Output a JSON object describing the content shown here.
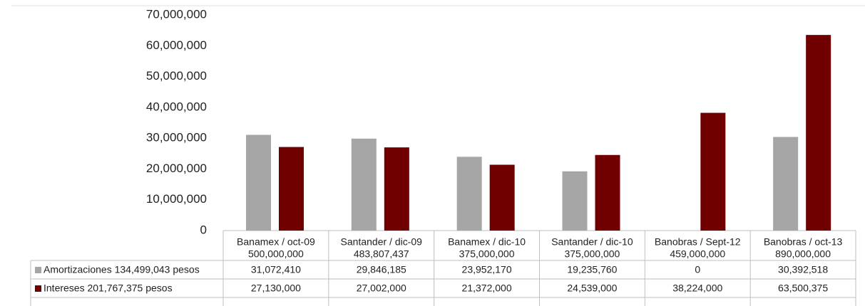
{
  "chart_data": {
    "type": "bar",
    "categories": [
      [
        "Banamex / oct-09",
        "500,000,000"
      ],
      [
        "Santander / dic-09",
        "483,807,437"
      ],
      [
        "Banamex / dic-10",
        "375,000,000"
      ],
      [
        "Santander / dic-10",
        "375,000,000"
      ],
      [
        "Banobras / Sept-12",
        "459,000,000"
      ],
      [
        "Banobras / oct-13",
        "890,000,000"
      ]
    ],
    "series": [
      {
        "name": "Amortizaciones 134,499,043 pesos",
        "color": "#a6a6a6",
        "values": [
          31072410,
          29846185,
          23952170,
          19235760,
          0,
          30392518
        ],
        "value_labels": [
          "31,072,410",
          "29,846,185",
          "23,952,170",
          "19,235,760",
          "0",
          "30,392,518"
        ]
      },
      {
        "name": "Intereses 201,767,375 pesos",
        "color": "#700000",
        "values": [
          27130000,
          27002000,
          21372000,
          24539000,
          38224000,
          63500375
        ],
        "value_labels": [
          "27,130,000",
          "27,002,000",
          "21,372,000",
          "24,539,000",
          "38,224,000",
          "63,500,375"
        ]
      }
    ],
    "ylim": [
      0,
      70000000
    ],
    "yticks": [
      {
        "value": 0,
        "label": "0"
      },
      {
        "value": 10000000,
        "label": "10,000,000"
      },
      {
        "value": 20000000,
        "label": "20,000,000"
      },
      {
        "value": 30000000,
        "label": "30,000,000"
      },
      {
        "value": 40000000,
        "label": "40,000,000"
      },
      {
        "value": 50000000,
        "label": "50,000,000"
      },
      {
        "value": 60000000,
        "label": "60,000,000"
      },
      {
        "value": 70000000,
        "label": "70,000,000"
      }
    ],
    "legend": "table",
    "grid": false
  }
}
